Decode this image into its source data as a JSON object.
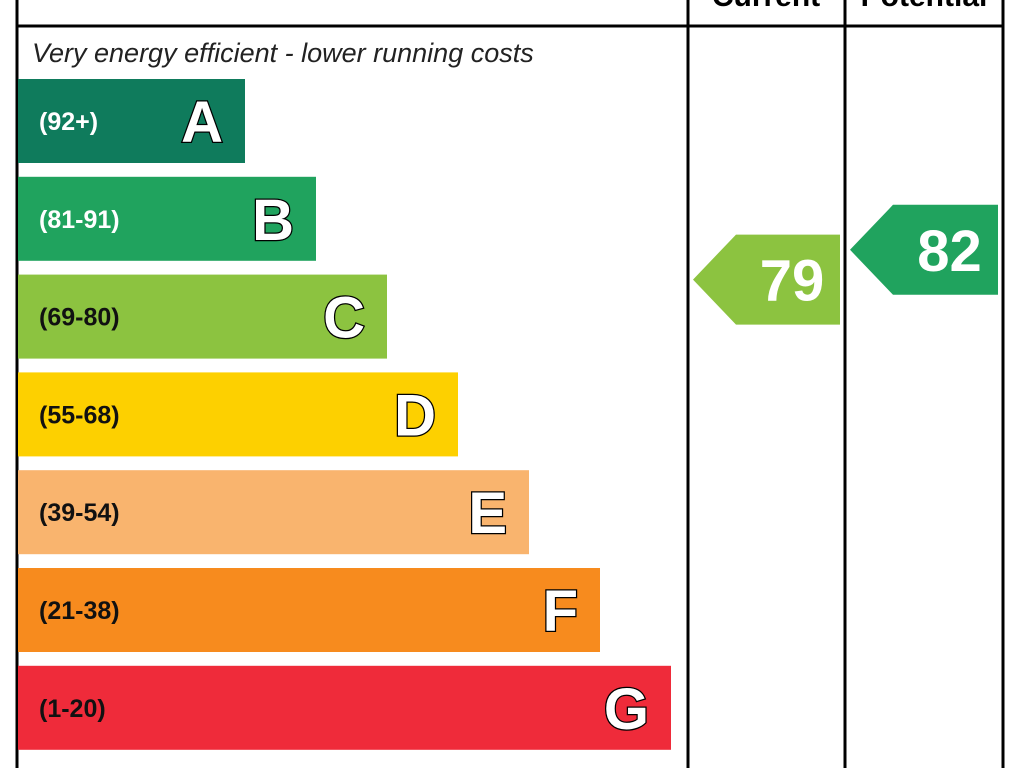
{
  "chart_data": {
    "type": "bar",
    "columns": {
      "current": "Current",
      "potential": "Potential"
    },
    "top_note": "Very energy efficient - lower running costs",
    "bands": [
      {
        "letter": "A",
        "range": "(92+)",
        "color": "#0f7b5c",
        "range_color": "#ffffff"
      },
      {
        "letter": "B",
        "range": "(81-91)",
        "color": "#20a35e",
        "range_color": "#ffffff"
      },
      {
        "letter": "C",
        "range": "(69-80)",
        "color": "#8cc340",
        "range_color": "#111111"
      },
      {
        "letter": "D",
        "range": "(55-68)",
        "color": "#fdd000",
        "range_color": "#111111"
      },
      {
        "letter": "E",
        "range": "(39-54)",
        "color": "#f9b46e",
        "range_color": "#111111"
      },
      {
        "letter": "F",
        "range": "(21-38)",
        "color": "#f78b1e",
        "range_color": "#111111"
      },
      {
        "letter": "G",
        "range": "(1-20)",
        "color": "#ef2b3a",
        "range_color": "#111111"
      }
    ],
    "current": {
      "value": 79,
      "band": "C",
      "color": "#8cc340"
    },
    "potential": {
      "value": 82,
      "band": "B",
      "color": "#20a35e"
    }
  }
}
